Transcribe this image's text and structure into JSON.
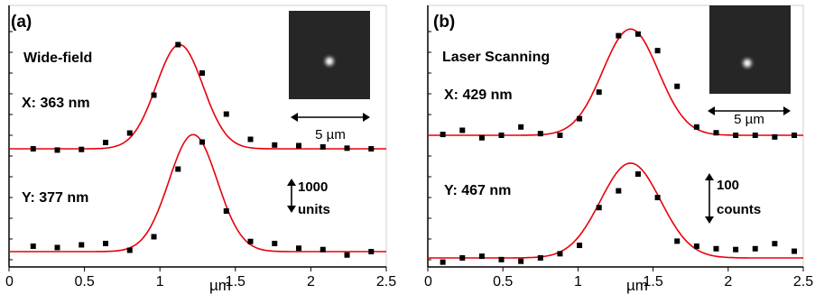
{
  "colors": {
    "fit": "#e8000b",
    "points": "#000000",
    "axis": "#000000"
  },
  "chart_data": [
    {
      "type": "scatter",
      "panel_label": "(a)",
      "method_label": "Wide-field",
      "xlabel": "µm",
      "xlim": [
        0,
        2.5
      ],
      "xticks": [
        "0",
        "0.5",
        "1",
        "1.5",
        "2",
        "2.5"
      ],
      "scale_bar": {
        "line1": "1000",
        "line2": "units"
      },
      "inset": {
        "scale_label": "5 µm"
      },
      "series": [
        {
          "name": "X: 363 nm",
          "fit": {
            "center": 1.13,
            "height": 1.65,
            "sigma": 0.155
          },
          "x": [
            0.16,
            0.32,
            0.48,
            0.64,
            0.8,
            0.96,
            1.12,
            1.28,
            1.44,
            1.6,
            1.76,
            1.92,
            2.08,
            2.24,
            2.4
          ],
          "y": [
            0.0,
            -0.02,
            -0.01,
            0.1,
            0.25,
            0.85,
            1.65,
            1.2,
            0.55,
            0.15,
            0.06,
            0.05,
            0.03,
            0.01,
            0.0
          ]
        },
        {
          "name": "Y: 377 nm",
          "fit": {
            "center": 1.22,
            "height": 1.73,
            "sigma": 0.16
          },
          "x": [
            0.16,
            0.32,
            0.48,
            0.64,
            0.8,
            0.96,
            1.12,
            1.28,
            1.44,
            1.6,
            1.76,
            1.92,
            2.08,
            2.24,
            2.4
          ],
          "y": [
            0.08,
            0.06,
            0.1,
            0.12,
            0.02,
            0.22,
            1.22,
            1.62,
            0.6,
            0.15,
            0.12,
            0.05,
            0.03,
            -0.05,
            0.0
          ]
        }
      ]
    },
    {
      "type": "scatter",
      "panel_label": "(b)",
      "method_label": "Laser Scanning",
      "xlabel": "µm",
      "xlim": [
        0,
        2.5
      ],
      "xticks": [
        "0",
        "0.5",
        "1",
        "1.5",
        "2",
        "2.5"
      ],
      "scale_bar": {
        "line1": "100",
        "line2": "counts"
      },
      "inset": {
        "scale_label": "5 µm"
      },
      "series": [
        {
          "name": "X: 429 nm",
          "fit": {
            "center": 1.35,
            "height": 1.28,
            "sigma": 0.185
          },
          "x": [
            0.1,
            0.23,
            0.36,
            0.49,
            0.62,
            0.75,
            0.88,
            1.01,
            1.14,
            1.27,
            1.4,
            1.53,
            1.66,
            1.79,
            1.92,
            2.05,
            2.18,
            2.31,
            2.44
          ],
          "y": [
            0.01,
            0.06,
            -0.03,
            0.0,
            0.1,
            0.02,
            0.0,
            0.2,
            0.52,
            1.2,
            1.22,
            1.02,
            0.59,
            0.1,
            0.03,
            0.0,
            0.0,
            -0.02,
            0.0
          ]
        },
        {
          "name": "Y: 467 nm",
          "fit": {
            "center": 1.35,
            "height": 1.13,
            "sigma": 0.2
          },
          "x": [
            0.1,
            0.23,
            0.36,
            0.49,
            0.62,
            0.75,
            0.88,
            1.01,
            1.14,
            1.27,
            1.4,
            1.53,
            1.66,
            1.79,
            1.92,
            2.05,
            2.18,
            2.31,
            2.44
          ],
          "y": [
            -0.05,
            0.0,
            0.02,
            -0.02,
            -0.04,
            0.0,
            0.05,
            0.15,
            0.6,
            0.8,
            1.0,
            0.72,
            0.2,
            0.14,
            0.11,
            0.1,
            0.11,
            0.17,
            0.08
          ]
        }
      ]
    }
  ]
}
